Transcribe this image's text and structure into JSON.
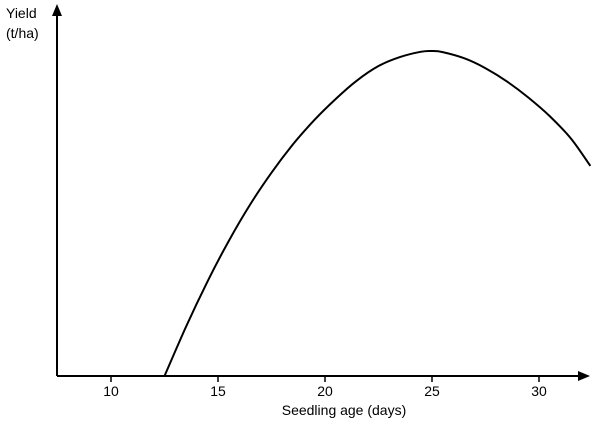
{
  "chart_data": {
    "type": "line",
    "title": "",
    "xlabel": "Seedling age (days)",
    "ylabel_lines": [
      "Yield",
      "(t/ha)"
    ],
    "xlim": [
      7.5,
      32.5
    ],
    "ylim": [
      0,
      1
    ],
    "x_ticks": [
      10,
      15,
      20,
      25,
      30
    ],
    "y_ticks": [],
    "grid": false,
    "legend": "none",
    "series": [
      {
        "x": [
          12.5,
          13.5,
          14.5,
          15.5,
          16.5,
          17.5,
          18.5,
          19.5,
          20.5,
          21.5,
          22.5,
          23.5,
          24.5,
          25.0,
          25.5,
          26.5,
          27.5,
          28.5,
          29.5,
          30.5,
          31.5,
          32.4
        ],
        "y": [
          0.0,
          0.137,
          0.263,
          0.377,
          0.479,
          0.568,
          0.647,
          0.715,
          0.774,
          0.826,
          0.866,
          0.891,
          0.906,
          0.908,
          0.905,
          0.888,
          0.86,
          0.823,
          0.778,
          0.726,
          0.663,
          0.587
        ]
      }
    ],
    "colors": {
      "line": "#000000",
      "axis": "#000000"
    }
  }
}
